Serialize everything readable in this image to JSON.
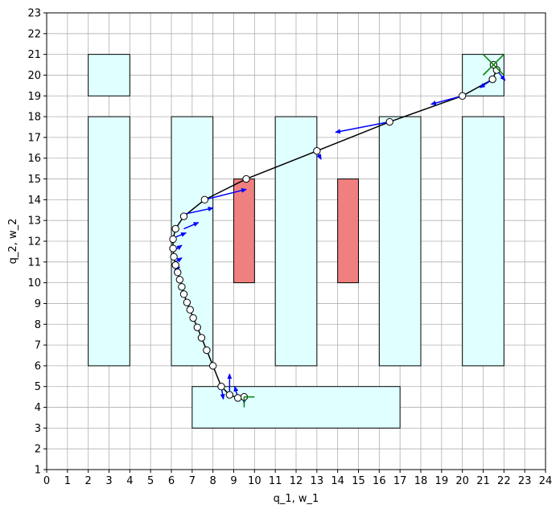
{
  "chart_data": {
    "type": "scatter",
    "title": "",
    "xlabel": "q_1, w_1",
    "ylabel": "q_2, w_2",
    "xlim": [
      0,
      24
    ],
    "ylim": [
      1,
      23
    ],
    "xticks": [
      0,
      1,
      2,
      3,
      4,
      5,
      6,
      7,
      8,
      9,
      10,
      11,
      12,
      13,
      14,
      15,
      16,
      17,
      18,
      19,
      20,
      21,
      22,
      23,
      24
    ],
    "yticks": [
      1,
      2,
      3,
      4,
      5,
      6,
      7,
      8,
      9,
      10,
      11,
      12,
      13,
      14,
      15,
      16,
      17,
      18,
      19,
      20,
      21,
      22,
      23
    ],
    "grid": true,
    "colors": {
      "free_region": "#e0ffff",
      "obstacle": "#f08080",
      "path": "#000000",
      "arrow": "#0000ff",
      "frame": "#008000",
      "grid": "#b0b0b0"
    },
    "free_regions": [
      {
        "x0": 2,
        "x1": 4,
        "y0": 19,
        "y1": 21
      },
      {
        "x0": 2,
        "x1": 4,
        "y0": 6,
        "y1": 18
      },
      {
        "x0": 6,
        "x1": 8,
        "y0": 6,
        "y1": 18
      },
      {
        "x0": 11,
        "x1": 13,
        "y0": 6,
        "y1": 18
      },
      {
        "x0": 16,
        "x1": 18,
        "y0": 6,
        "y1": 18
      },
      {
        "x0": 20,
        "x1": 22,
        "y0": 6,
        "y1": 18
      },
      {
        "x0": 20,
        "x1": 22,
        "y0": 19,
        "y1": 21
      },
      {
        "x0": 7,
        "x1": 17,
        "y0": 3,
        "y1": 5
      }
    ],
    "obstacles": [
      {
        "x0": 9,
        "x1": 10,
        "y0": 10,
        "y1": 15
      },
      {
        "x0": 14,
        "x1": 15,
        "y0": 10,
        "y1": 15
      }
    ],
    "path": [
      [
        9.5,
        4.5
      ],
      [
        9.2,
        4.45
      ],
      [
        8.8,
        4.6
      ],
      [
        8.4,
        5.0
      ],
      [
        8.0,
        6.0
      ],
      [
        7.7,
        6.75
      ],
      [
        7.45,
        7.35
      ],
      [
        7.25,
        7.85
      ],
      [
        7.05,
        8.3
      ],
      [
        6.9,
        8.7
      ],
      [
        6.75,
        9.05
      ],
      [
        6.6,
        9.45
      ],
      [
        6.5,
        9.8
      ],
      [
        6.4,
        10.15
      ],
      [
        6.3,
        10.5
      ],
      [
        6.2,
        10.85
      ],
      [
        6.12,
        11.25
      ],
      [
        6.08,
        11.65
      ],
      [
        6.08,
        12.1
      ],
      [
        6.2,
        12.6
      ],
      [
        6.6,
        13.2
      ],
      [
        7.6,
        14.0
      ],
      [
        9.6,
        15.0
      ],
      [
        13.0,
        16.35
      ],
      [
        16.5,
        17.75
      ],
      [
        20.0,
        19.0
      ],
      [
        21.45,
        19.8
      ],
      [
        21.65,
        20.25
      ],
      [
        21.5,
        20.5
      ]
    ],
    "vectors": [
      {
        "x": 9.5,
        "y": 4.5,
        "dx": 0,
        "dy": -0.3
      },
      {
        "x": 9.2,
        "y": 4.45,
        "dx": -0.15,
        "dy": 0.55
      },
      {
        "x": 8.8,
        "y": 4.6,
        "dx": 0,
        "dy": 1.0
      },
      {
        "x": 8.4,
        "y": 5.0,
        "dx": 0.1,
        "dy": -0.6
      },
      {
        "x": 6.15,
        "y": 10.6,
        "dx": 0.25,
        "dy": 0.15
      },
      {
        "x": 6.2,
        "y": 11.0,
        "dx": 0.3,
        "dy": 0.2
      },
      {
        "x": 6.2,
        "y": 11.6,
        "dx": 0.3,
        "dy": 0.2
      },
      {
        "x": 6.2,
        "y": 12.2,
        "dx": 0.5,
        "dy": 0.2
      },
      {
        "x": 6.6,
        "y": 12.6,
        "dx": 0.7,
        "dy": 0.3
      },
      {
        "x": 6.6,
        "y": 13.3,
        "dx": 1.4,
        "dy": 0.3
      },
      {
        "x": 7.6,
        "y": 14.0,
        "dx": 2.0,
        "dy": 0.5
      },
      {
        "x": 13.0,
        "y": 16.35,
        "dx": 0.2,
        "dy": -0.4
      },
      {
        "x": 16.5,
        "y": 17.75,
        "dx": -2.6,
        "dy": -0.5
      },
      {
        "x": 20.0,
        "y": 19.0,
        "dx": -1.5,
        "dy": -0.4
      },
      {
        "x": 21.45,
        "y": 19.8,
        "dx": -0.6,
        "dy": -0.4
      },
      {
        "x": 21.65,
        "y": 20.25,
        "dx": 0.4,
        "dy": -0.5
      }
    ],
    "frames": [
      {
        "x": 9.5,
        "y": 4.5,
        "segments": [
          [
            [
              9.5,
              4.5
            ],
            [
              10.0,
              4.5
            ]
          ],
          [
            [
              9.5,
              4.5
            ],
            [
              9.5,
              4.0
            ]
          ]
        ]
      },
      {
        "x": 21.5,
        "y": 20.5,
        "segments": [
          [
            [
              21.0,
              20.0
            ],
            [
              22.0,
              21.0
            ]
          ],
          [
            [
              21.0,
              21.0
            ],
            [
              22.0,
              20.0
            ]
          ]
        ]
      }
    ]
  }
}
